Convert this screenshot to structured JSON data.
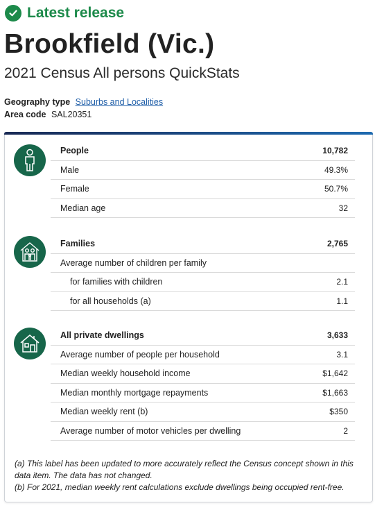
{
  "release": {
    "label": "Latest release",
    "icon": "check-circle-icon",
    "color": "#1c8a4a"
  },
  "title": "Brookfield (Vic.)",
  "subtitle": "2021 Census All persons QuickStats",
  "geography": {
    "label": "Geography type",
    "link_text": "Suburbs and Localities"
  },
  "area": {
    "label": "Area code",
    "value": "SAL20351"
  },
  "sections": {
    "people": {
      "icon": "person-icon",
      "header": {
        "label": "People",
        "value": "10,782"
      },
      "rows": [
        {
          "label": "Male",
          "value": "49.3%"
        },
        {
          "label": "Female",
          "value": "50.7%"
        },
        {
          "label": "Median age",
          "value": "32"
        }
      ]
    },
    "families": {
      "icon": "family-house-icon",
      "header": {
        "label": "Families",
        "value": "2,765"
      },
      "rows": [
        {
          "label": "Average number of children per family",
          "value": ""
        },
        {
          "label": "for families with children",
          "value": "2.1"
        },
        {
          "label": "for all households (a)",
          "value": "1.1"
        }
      ]
    },
    "dwellings": {
      "icon": "house-icon",
      "header": {
        "label": "All private dwellings",
        "value": "3,633"
      },
      "rows": [
        {
          "label": "Average number of people per household",
          "value": "3.1"
        },
        {
          "label": "Median weekly household income",
          "value": "$1,642"
        },
        {
          "label": "Median monthly mortgage repayments",
          "value": "$1,663"
        },
        {
          "label": "Median weekly rent (b)",
          "value": "$350"
        },
        {
          "label": "Average number of motor vehicles per dwelling",
          "value": "2"
        }
      ]
    }
  },
  "footnotes": {
    "a": "(a) This label has been updated to more accurately reflect the Census concept shown in this data item. The data has not changed.",
    "b": "(b) For 2021, median weekly rent calculations exclude dwellings being occupied rent-free."
  },
  "colors": {
    "accent_green": "#1c8a4a",
    "icon_circle": "#17664a",
    "card_top": "#1e5aa0",
    "link": "#1f5ea8"
  }
}
